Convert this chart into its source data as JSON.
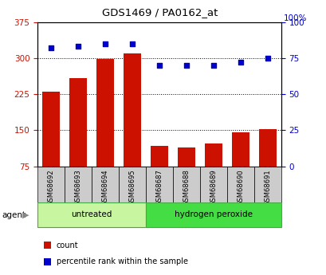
{
  "title": "GDS1469 / PA0162_at",
  "samples": [
    "GSM68692",
    "GSM68693",
    "GSM68694",
    "GSM68695",
    "GSM68687",
    "GSM68688",
    "GSM68689",
    "GSM68690",
    "GSM68691"
  ],
  "counts": [
    230,
    258,
    298,
    310,
    118,
    115,
    122,
    145,
    152
  ],
  "percentiles": [
    82,
    83,
    85,
    85,
    70,
    70,
    70,
    72,
    75
  ],
  "groups": [
    {
      "label": "untreated",
      "start": 0,
      "end": 4
    },
    {
      "label": "hydrogen peroxide",
      "start": 4,
      "end": 9
    }
  ],
  "untreated_color": "#c8f5a0",
  "h2o2_color": "#44dd44",
  "bar_color": "#cc1100",
  "dot_color": "#0000cc",
  "left_yticks": [
    75,
    150,
    225,
    300,
    375
  ],
  "right_yticks": [
    0,
    25,
    50,
    75,
    100
  ],
  "left_ylim": [
    75,
    375
  ],
  "right_ylim": [
    0,
    100
  ],
  "tick_area_color": "#cccccc",
  "legend_count_label": "count",
  "legend_pct_label": "percentile rank within the sample",
  "agent_label": "agent"
}
